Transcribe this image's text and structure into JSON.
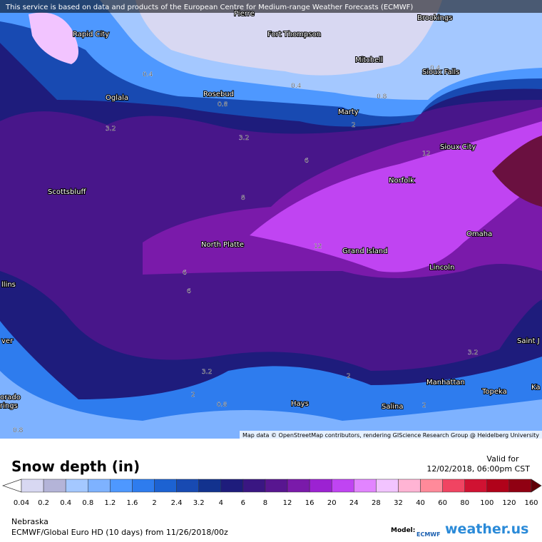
{
  "header": {
    "notice": "This service is based on data and products of the European Centre for Medium-range Weather Forecasts (ECMWF)"
  },
  "map": {
    "cities": [
      "Pierre",
      "Brookings",
      "Rapid City",
      "Fort Thompson",
      "Mitchell",
      "Sioux Falls",
      "Oglala",
      "Rosebud",
      "Marty",
      "Sioux City",
      "Norfolk",
      "Scottsbluff",
      "North Platte",
      "Grand Island",
      "Omaha",
      "Lincoln",
      "Hays",
      "Salina",
      "Manhattan",
      "Topeka",
      "Saint J",
      "Ka",
      "llins",
      "ver",
      "orado",
      "rings"
    ],
    "contours": [
      "0.4",
      "0.4",
      "0.8",
      "0.8",
      "2",
      "3.2",
      "6",
      "12",
      "8",
      "12",
      "6",
      "6",
      "3.2",
      "3.2",
      "2",
      "0.8",
      "0.8",
      "2",
      "2",
      "0.4",
      "3.2"
    ],
    "attribution": "Map data © OpenStreetMap contributors, rendering GIScience Research Group @ Heidelberg University"
  },
  "legend": {
    "title": "Snow depth (in)",
    "valid_label": "Valid for",
    "valid_time": "12/02/2018, 06:00pm CST",
    "levels": [
      "0.04",
      "0.2",
      "0.4",
      "0.8",
      "1.2",
      "1.6",
      "2",
      "2.4",
      "3.2",
      "4",
      "6",
      "8",
      "12",
      "16",
      "20",
      "24",
      "28",
      "32",
      "40",
      "60",
      "80",
      "100",
      "120",
      "160"
    ],
    "colors": [
      "#d8d8f2",
      "#b4b4d8",
      "#a4c8ff",
      "#7eb2ff",
      "#4e98ff",
      "#2e7cee",
      "#1c62d2",
      "#184ab2",
      "#12328e",
      "#1e1c7c",
      "#3a1682",
      "#581690",
      "#7a1aaa",
      "#9c22d2",
      "#c044f2",
      "#e284ff",
      "#f2c4ff",
      "#ffb4d4",
      "#ff8a9a",
      "#f04462",
      "#d01232",
      "#b0021a",
      "#900012",
      "#600008"
    ]
  },
  "footer": {
    "region": "Nebraska",
    "model_run": "ECMWF/Global Euro HD (10 days) from 11/26/2018/00z",
    "model_label": "Model:",
    "model_name": "ECMWF",
    "brand": "weather.us"
  }
}
